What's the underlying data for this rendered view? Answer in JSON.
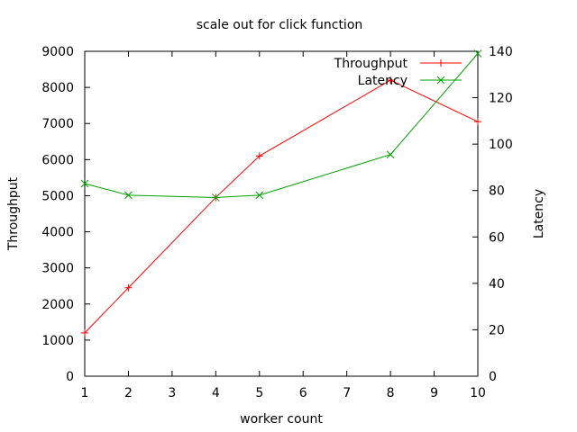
{
  "chart_data": {
    "type": "line",
    "title": "scale out for click function",
    "xlabel": "worker count",
    "ylabel": "Throughput",
    "y2label": "Latency",
    "xlim": [
      1,
      10
    ],
    "ylim": [
      0,
      9000
    ],
    "y2lim": [
      0,
      140
    ],
    "xticks": [
      1,
      2,
      3,
      4,
      5,
      6,
      7,
      8,
      9,
      10
    ],
    "yticks": [
      0,
      1000,
      2000,
      3000,
      4000,
      5000,
      6000,
      7000,
      8000,
      9000
    ],
    "y2ticks": [
      0,
      20,
      40,
      60,
      80,
      100,
      120,
      140
    ],
    "grid": false,
    "legend_position": "top-right",
    "series": [
      {
        "name": "Throughput",
        "axis": "left",
        "color": "#ff0000",
        "marker": "plus",
        "x": [
          1,
          2,
          4,
          5,
          8,
          10
        ],
        "values": [
          1200,
          2450,
          4950,
          6100,
          8200,
          7050
        ]
      },
      {
        "name": "Latency",
        "axis": "right",
        "color": "#00a000",
        "marker": "cross",
        "x": [
          1,
          2,
          4,
          5,
          8,
          10
        ],
        "values": [
          83,
          78,
          77,
          78,
          95.5,
          139
        ]
      }
    ]
  }
}
